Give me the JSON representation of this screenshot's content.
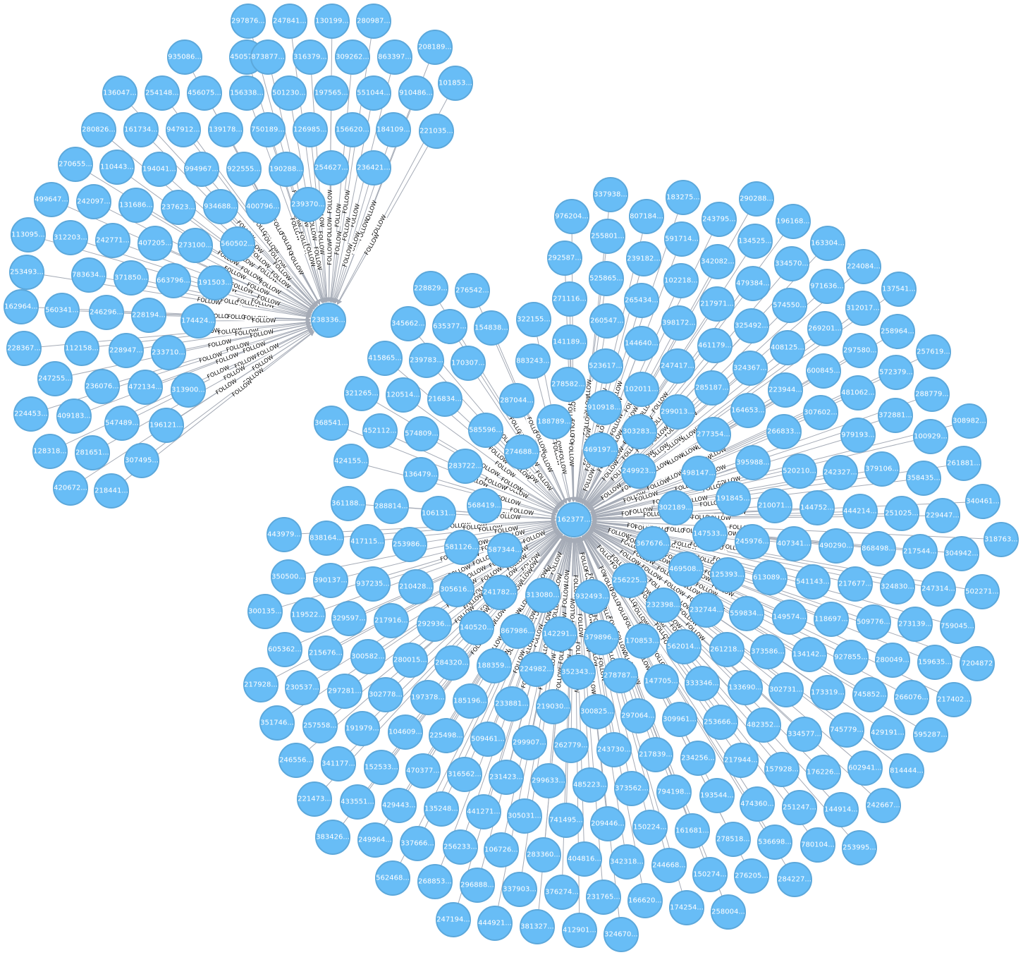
{
  "colors": {
    "node_fill": "#68bdf6",
    "node_stroke": "#5ca8db",
    "edge": "#a5abb6",
    "node_text": "#ffffff",
    "edge_text": "#000000"
  },
  "relationship_type": "FOLLOW",
  "hubs": [
    {
      "label": "238336..."
    },
    {
      "label": "162377..."
    }
  ],
  "cluster_a_labels": [
    "297876...",
    "247841...",
    "130199...",
    "280987...",
    "935086...",
    "450576...",
    "873877...",
    "316379...",
    "309262...",
    "863397...",
    "208189...",
    "136047...",
    "254148...",
    "456075...",
    "156338...",
    "501230...",
    "197565...",
    "551044...",
    "910486...",
    "101853...",
    "280826...",
    "161734...",
    "947912...",
    "139178...",
    "750189...",
    "126985...",
    "156620...",
    "184109...",
    "221035...",
    "270655...",
    "110443...",
    "194041...",
    "994967...",
    "922555...",
    "190288...",
    "254627...",
    "236421...",
    "499647...",
    "242097...",
    "131686...",
    "237623...",
    "934688...",
    "400796...",
    "239370...",
    "113095...",
    "312203...",
    "242771...",
    "407205...",
    "273100...",
    "560502...",
    "253493...",
    "783634...",
    "371850...",
    "663796...",
    "191503...",
    "162964...",
    "560341...",
    "246296...",
    "228194...",
    "174424...",
    "228367...",
    "112158...",
    "228947...",
    "233710...",
    "247255...",
    "236076...",
    "472134...",
    "313900...",
    "224453...",
    "409183...",
    "547489...",
    "196121...",
    "128318...",
    "281651...",
    "307495...",
    "420672...",
    "218441..."
  ],
  "cluster_b_labels": [
    "337938...",
    "183275...",
    "290288...",
    "976204...",
    "807184...",
    "243795...",
    "196168...",
    "255801...",
    "591714...",
    "134525...",
    "163304...",
    "292587...",
    "239182...",
    "342082...",
    "334570...",
    "224084...",
    "525865...",
    "102218...",
    "479384...",
    "971636...",
    "137541...",
    "271116...",
    "265434...",
    "217971...",
    "574550...",
    "312017...",
    "260547...",
    "398172...",
    "325492...",
    "269201...",
    "258964...",
    "141189...",
    "144640...",
    "461179...",
    "408125...",
    "297580...",
    "257619...",
    "523617...",
    "247417...",
    "324367...",
    "600845...",
    "572379...",
    "278582...",
    "102011...",
    "285187...",
    "223944...",
    "481062...",
    "288779...",
    "910918...",
    "299013...",
    "164653...",
    "307602...",
    "372881...",
    "308982...",
    "303283...",
    "277354...",
    "266833...",
    "979193...",
    "100929...",
    "469197...",
    "261881...",
    "249923...",
    "498147...",
    "395988...",
    "520210...",
    "242327...",
    "379106...",
    "358435...",
    "302189...",
    "191845...",
    "210071...",
    "144752...",
    "444214...",
    "251025...",
    "229447...",
    "340461...",
    "147533...",
    "245976...",
    "407341...",
    "490290...",
    "868498...",
    "217544...",
    "304942...",
    "318763...",
    "367676...",
    "469508...",
    "125393...",
    "613089...",
    "541143...",
    "217677...",
    "324830...",
    "247314...",
    "502271...",
    "256225...",
    "232398...",
    "232744...",
    "559834...",
    "149574...",
    "118697...",
    "509776...",
    "273139...",
    "759045...",
    "562014...",
    "261218...",
    "373586...",
    "134142...",
    "927855...",
    "280049...",
    "159635...",
    "7204872",
    "333346...",
    "133690...",
    "302731...",
    "173319...",
    "745852...",
    "266076...",
    "217402...",
    "253666...",
    "482352...",
    "334577...",
    "745779...",
    "429191...",
    "595287...",
    "217944...",
    "157928...",
    "176226...",
    "602941...",
    "814444...",
    "474360...",
    "251247...",
    "144914...",
    "242667...",
    "536698...",
    "780104...",
    "253995...",
    "278518...",
    "276205...",
    "284227...",
    "150274...",
    "258004...",
    "174254...",
    "322155...",
    "883243...",
    "287044...",
    "188789...",
    "276542...",
    "228829...",
    "154838...",
    "635377...",
    "345662...",
    "170307...",
    "239783...",
    "415865...",
    "274688...",
    "585596...",
    "283722...",
    "216834...",
    "120514...",
    "321265...",
    "368541...",
    "452112...",
    "574809...",
    "424155...",
    "136479...",
    "361188...",
    "288814...",
    "106131...",
    "568419...",
    "443979...",
    "838164...",
    "417115...",
    "253986...",
    "581126...",
    "587344...",
    "350500...",
    "390137...",
    "937235...",
    "210428...",
    "305616...",
    "241782...",
    "313080...",
    "932493...",
    "300135...",
    "119522...",
    "329597...",
    "217916...",
    "292936...",
    "140520...",
    "867986...",
    "142291...",
    "379896...",
    "170853...",
    "605362...",
    "215676...",
    "300582...",
    "280015...",
    "284320...",
    "188359...",
    "224982...",
    "352343...",
    "278787...",
    "147705...",
    "217928...",
    "230537...",
    "297281...",
    "302778...",
    "197378...",
    "185196...",
    "233881...",
    "219030...",
    "300825...",
    "297064...",
    "309961...",
    "351746...",
    "257558...",
    "191979...",
    "104609...",
    "225498...",
    "509461...",
    "299907...",
    "262779...",
    "243730...",
    "217839...",
    "234256...",
    "246556...",
    "341177...",
    "152533...",
    "470377...",
    "316562...",
    "231423...",
    "299633...",
    "485223...",
    "373562...",
    "794198...",
    "193544...",
    "221473...",
    "433551...",
    "429443...",
    "135248...",
    "441271...",
    "305031...",
    "741495...",
    "209446...",
    "150224...",
    "161681...",
    "383426...",
    "249964...",
    "337666...",
    "256233...",
    "106726...",
    "283360...",
    "404816...",
    "342318...",
    "244668...",
    "562468...",
    "268853...",
    "296888...",
    "337903...",
    "376274...",
    "231765...",
    "166620...",
    "247194...",
    "444921...",
    "381327...",
    "412901...",
    "324670..."
  ]
}
